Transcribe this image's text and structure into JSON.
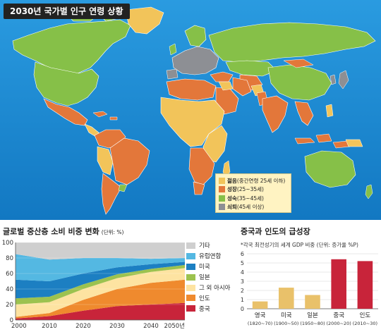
{
  "map": {
    "title": "2030년 국가별 인구 연령 상황",
    "legend": [
      {
        "key": "young",
        "label_bold": "젊음",
        "label_rest": "(중간연령 25세 이하)",
        "color": "#f2c45a"
      },
      {
        "key": "growing",
        "label_bold": "성장",
        "label_rest": "(25~35세)",
        "color": "#e3773a"
      },
      {
        "key": "mature",
        "label_bold": "성숙",
        "label_rest": "(35~45세)",
        "color": "#86c048"
      },
      {
        "key": "aging",
        "label_bold": "쇠퇴",
        "label_rest": "(45세 이상)",
        "color": "#8d8f94"
      }
    ],
    "colors": {
      "ocean": "#1e8fd4",
      "ocean_dark": "#0f6fb3"
    }
  },
  "middle_class": {
    "title": "글로벌 중산층 소비 비중 변화",
    "unit": "(단위: %)",
    "legend_labels": [
      "기타",
      "유럽연합",
      "미국",
      "일본",
      "그 외 아시아",
      "인도",
      "중국"
    ]
  },
  "china_india": {
    "title": "중국과 인도의 급성장",
    "subtitle": "*각국 최전성기의 세계 GDP 비중 (단위: 증가율 %P)",
    "bar_labels": [
      {
        "name": "영국",
        "period": "(1820~70)"
      },
      {
        "name": "미국",
        "period": "(1900~50)"
      },
      {
        "name": "일본",
        "period": "(1950~80)"
      },
      {
        "name": "중국",
        "period": "(2000~20)"
      },
      {
        "name": "인도",
        "period": "(2010~30)"
      }
    ]
  },
  "chart_data": [
    {
      "type": "area",
      "stacked": true,
      "x": [
        2000,
        2010,
        2020,
        2030,
        2040,
        2050
      ],
      "x_tick_labels": [
        "2000",
        "2010",
        "2020",
        "2030",
        "2040",
        "2050년"
      ],
      "ylim": [
        0,
        100
      ],
      "y_ticks": [
        0,
        20,
        40,
        60,
        80,
        100
      ],
      "legend_position": "right",
      "series": [
        {
          "name": "중국",
          "color": "#c8243a",
          "values": [
            2,
            5,
            12,
            18,
            20,
            22
          ]
        },
        {
          "name": "인도",
          "color": "#ef8a2e",
          "values": [
            2,
            4,
            14,
            22,
            28,
            30
          ]
        },
        {
          "name": "그 외 아시아",
          "color": "#fde3a1",
          "values": [
            16,
            14,
            14,
            14,
            14,
            15
          ]
        },
        {
          "name": "일본",
          "color": "#9cc24f",
          "values": [
            8,
            7,
            6,
            5,
            4,
            4
          ]
        },
        {
          "name": "미국",
          "color": "#1c7fc2",
          "values": [
            24,
            20,
            14,
            9,
            6,
            4
          ]
        },
        {
          "name": "유럽연합",
          "color": "#54b8e2",
          "values": [
            33,
            28,
            20,
            12,
            7,
            5
          ]
        },
        {
          "name": "기타",
          "color": "#cfcfcf",
          "values": [
            15,
            22,
            20,
            20,
            21,
            20
          ]
        }
      ]
    },
    {
      "type": "bar",
      "categories": [
        "영국",
        "미국",
        "일본",
        "중국",
        "인도"
      ],
      "values": [
        0.8,
        2.3,
        1.5,
        5.4,
        5.2
      ],
      "colors": [
        "#e9c16a",
        "#e9c16a",
        "#e9c16a",
        "#c8243a",
        "#c8243a"
      ],
      "ylim": [
        0,
        6
      ],
      "y_ticks": [
        0,
        1,
        2,
        3,
        4,
        5,
        6
      ],
      "grid": true
    }
  ]
}
